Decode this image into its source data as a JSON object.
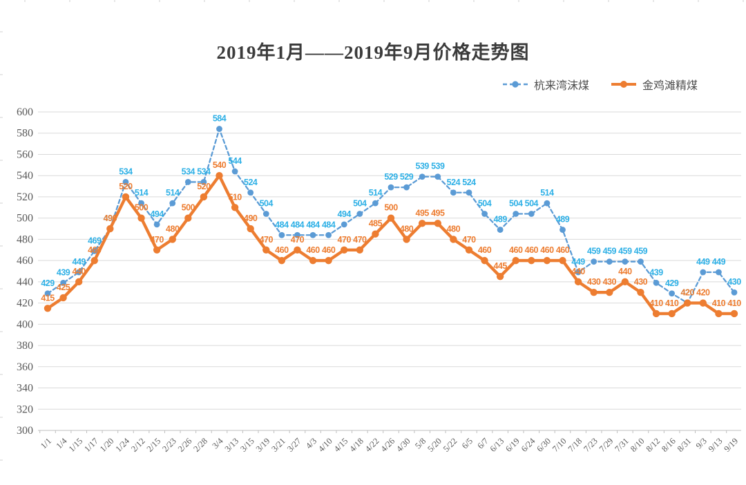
{
  "title": "2019年1月——2019年9月价格走势图",
  "legend": {
    "items": [
      {
        "label": "杭来湾沫煤"
      },
      {
        "label": "金鸡滩精煤"
      }
    ]
  },
  "colors": {
    "blue_line": "#5B9BD5",
    "blue_label": "#2EB0E6",
    "orange_line": "#ED7D31",
    "orange_label": "#ED7D31",
    "gridline": "#D9D9D9",
    "axis_line": "#BFBFBF",
    "axis_text": "#595959",
    "title_text": "#3B3B3B",
    "sheet_line": "#D0D0D0",
    "background": "#FFFFFF"
  },
  "chart_data": {
    "type": "line",
    "title": "2019年1月——2019年9月价格走势图",
    "xlabel": "",
    "ylabel": "",
    "ylim": [
      300,
      600
    ],
    "yticks": [
      600,
      580,
      560,
      540,
      520,
      500,
      480,
      460,
      440,
      420,
      400,
      380,
      360,
      340,
      320,
      300
    ],
    "grid": true,
    "legend_position": "top-right",
    "data_labels": true,
    "categories": [
      "1/1",
      "1/4",
      "1/15",
      "1/17",
      "1/20",
      "1/24",
      "2/12",
      "2/15",
      "2/23",
      "2/26",
      "2/28",
      "3/4",
      "3/13",
      "3/15",
      "3/19",
      "3/21",
      "3/27",
      "4/3",
      "4/10",
      "4/15",
      "4/18",
      "4/22",
      "4/26",
      "4/30",
      "5/8",
      "5/20",
      "5/22",
      "6/5",
      "6/7",
      "6/13",
      "6/19",
      "6/24",
      "6/30",
      "7/10",
      "7/18",
      "7/23",
      "7/29",
      "7/31",
      "8/10",
      "8/12",
      "8/16",
      "8/31",
      "9/3",
      "9/13",
      "9/19"
    ],
    "series": [
      {
        "name": "杭来湾沫煤",
        "style": "dashed",
        "line_color_key": "blue_line",
        "label_color_key": "blue_label",
        "values": [
          429,
          439,
          449,
          469,
          490,
          534,
          514,
          494,
          514,
          534,
          534,
          584,
          544,
          524,
          504,
          484,
          484,
          484,
          484,
          494,
          504,
          514,
          529,
          529,
          539,
          539,
          524,
          524,
          504,
          489,
          504,
          504,
          514,
          489,
          449,
          459,
          459,
          459,
          459,
          439,
          429,
          420,
          449,
          449,
          430
        ]
      },
      {
        "name": "金鸡滩精煤",
        "style": "solid",
        "line_color_key": "orange_line",
        "label_color_key": "orange_label",
        "values": [
          415,
          425,
          440,
          460,
          490,
          520,
          500,
          470,
          480,
          500,
          520,
          540,
          510,
          490,
          470,
          460,
          470,
          460,
          460,
          470,
          470,
          485,
          500,
          480,
          495,
          495,
          480,
          470,
          460,
          445,
          460,
          460,
          460,
          460,
          440,
          430,
          430,
          440,
          430,
          410,
          410,
          420,
          420,
          410,
          410
        ]
      }
    ]
  }
}
